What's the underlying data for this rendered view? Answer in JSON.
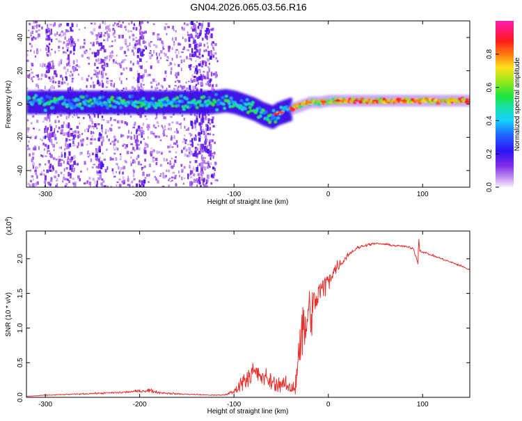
{
  "figure_title": "GN04.2026.065.03.56.R16",
  "colors": {
    "snr_line": "#e8302c",
    "axis": "#000000",
    "colormap": [
      "#f6eefb",
      "#d9b8f2",
      "#9a4de6",
      "#4a10e8",
      "#1a3cff",
      "#14c8ff",
      "#19d9a0",
      "#22e33a",
      "#b9e81c",
      "#ffd21a",
      "#ff6a10",
      "#ff1030",
      "#ff18a8"
    ]
  },
  "chart_data": [
    {
      "type": "heatmap",
      "title": "",
      "xlabel": "Height of straight line (km)",
      "ylabel": "Frequency (Hz)",
      "xlim": [
        -320,
        150
      ],
      "ylim": [
        -50,
        50
      ],
      "x_ticks": [
        -300,
        -200,
        -100,
        0,
        100
      ],
      "x_tick_labels": [
        "-300",
        "-200",
        "-100",
        "0",
        "100"
      ],
      "y_ticks": [
        -40,
        -20,
        0,
        20,
        40
      ],
      "y_tick_labels": [
        "-40",
        "-20",
        "0",
        "20",
        "40"
      ],
      "ridge": {
        "x": [
          -320,
          -300,
          -250,
          -200,
          -150,
          -125,
          -110,
          -100,
          -90,
          -80,
          -70,
          -60,
          -55,
          -50,
          -40,
          -30,
          -20,
          -10,
          0,
          20,
          50,
          80,
          100,
          120,
          150
        ],
        "frequency": [
          1,
          1,
          1,
          1,
          1,
          1,
          2,
          1,
          -1,
          -3,
          -6,
          -8,
          -6,
          -5,
          -3,
          -1,
          1,
          1,
          2,
          2,
          2,
          2,
          2,
          2,
          2
        ]
      },
      "colorbar": {
        "label": "Normalized spectral amplitude",
        "range": [
          0,
          1
        ],
        "ticks": [
          0.0,
          0.2,
          0.4,
          0.6,
          0.8
        ],
        "tick_labels": [
          "0.0",
          "0.2",
          "0.4",
          "0.6",
          "0.8"
        ]
      }
    },
    {
      "type": "line",
      "title": "",
      "xlabel": "Height of straight line (km)",
      "ylabel": "SNR (10 * v/v)",
      "scale_label": "(x10",
      "scale_exponent": "4",
      "xlim": [
        -320,
        150
      ],
      "ylim": [
        0,
        24000
      ],
      "x_ticks": [
        -300,
        -200,
        -100,
        0,
        100
      ],
      "x_tick_labels": [
        "-300",
        "-200",
        "-100",
        "0",
        "100"
      ],
      "y_ticks": [
        0,
        5000,
        10000,
        15000,
        20000
      ],
      "y_tick_labels": [
        "0.0",
        "0.5",
        "1.0",
        "1.5",
        "2.0"
      ],
      "series": [
        {
          "name": "SNR",
          "x": [
            -320,
            -300,
            -280,
            -260,
            -240,
            -220,
            -200,
            -190,
            -180,
            -160,
            -140,
            -120,
            -110,
            -100,
            -95,
            -90,
            -85,
            -80,
            -75,
            -70,
            -65,
            -60,
            -55,
            -50,
            -45,
            -40,
            -35,
            -32,
            -30,
            -28,
            -26,
            -24,
            -22,
            -20,
            -18,
            -15,
            -12,
            -10,
            -8,
            -5,
            -2,
            0,
            5,
            10,
            15,
            20,
            25,
            30,
            40,
            50,
            60,
            70,
            80,
            90,
            95,
            96,
            97,
            100,
            110,
            120,
            130,
            140,
            150
          ],
          "y": [
            150,
            300,
            400,
            500,
            600,
            700,
            900,
            1000,
            700,
            500,
            400,
            300,
            350,
            800,
            1600,
            2500,
            3000,
            3700,
            3200,
            2900,
            2600,
            2200,
            1900,
            2000,
            1700,
            1200,
            1700,
            6000,
            8000,
            9500,
            9000,
            10000,
            11500,
            12500,
            12000,
            13500,
            14000,
            15500,
            15000,
            16000,
            16500,
            17000,
            18000,
            19000,
            19500,
            20500,
            21000,
            21500,
            22000,
            22200,
            22100,
            21900,
            21800,
            21500,
            19500,
            22800,
            21200,
            21000,
            20500,
            20000,
            19500,
            19000,
            18400
          ],
          "noise": [
            30,
            60,
            80,
            100,
            120,
            180,
            220,
            250,
            180,
            120,
            100,
            80,
            100,
            400,
            900,
            1400,
            1600,
            1700,
            1600,
            1400,
            1300,
            1200,
            1100,
            1100,
            1000,
            900,
            1400,
            4000,
            5000,
            5000,
            4500,
            4500,
            4000,
            3500,
            3000,
            2500,
            2500,
            2200,
            2000,
            1800,
            1600,
            1400,
            1000,
            800,
            500,
            400,
            300,
            250,
            200,
            150,
            150,
            150,
            150,
            200,
            300,
            200,
            200,
            150,
            150,
            150,
            150,
            150,
            150
          ]
        }
      ]
    }
  ]
}
